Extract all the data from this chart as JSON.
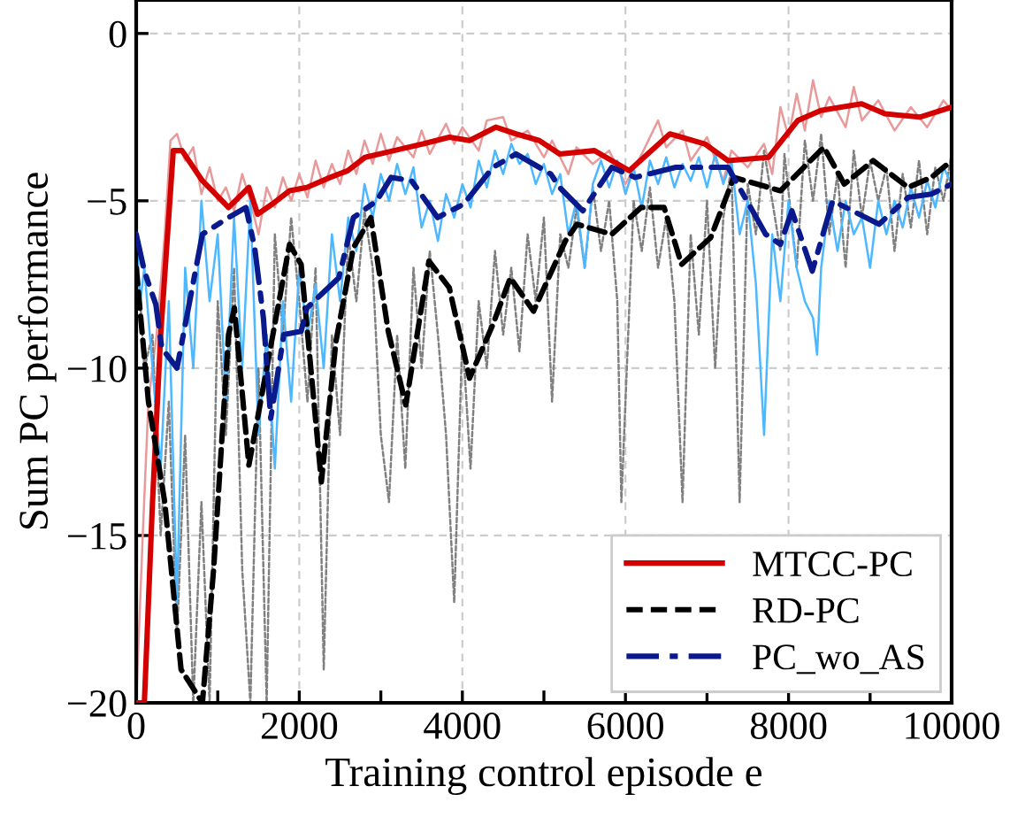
{
  "chart_data": {
    "type": "line",
    "xlabel": "Training control episode e",
    "ylabel": "Sum PC performance",
    "xlim": [
      0,
      10000
    ],
    "ylim": [
      -20,
      1
    ],
    "xticks": [
      0,
      {
        "value": 1000,
        "label": null
      },
      2000,
      {
        "value": 3000,
        "label": null
      },
      4000,
      {
        "value": 5000,
        "label": null
      },
      6000,
      {
        "value": 7000,
        "label": null
      },
      8000,
      {
        "value": 9000,
        "label": null
      },
      10000
    ],
    "yticks": [
      {
        "value": -20,
        "label": "−20"
      },
      {
        "value": -15,
        "label": "−15"
      },
      {
        "value": -10,
        "label": "−10"
      },
      {
        "value": -5,
        "label": "−5"
      },
      0
    ],
    "grid": true,
    "legend": "bottom right",
    "series": [
      {
        "color": "#e89a9a",
        "line_style": "solid",
        "x": [
          0,
          80,
          150,
          250,
          350,
          420,
          500,
          600,
          700,
          800,
          900,
          1000,
          1100,
          1200,
          1300,
          1400,
          1500,
          1600,
          1700,
          1800,
          1900,
          2000,
          2100,
          2200,
          2300,
          2400,
          2500,
          2600,
          2700,
          2800,
          2900,
          3000,
          3100,
          3200,
          3400,
          3500,
          3600,
          3800,
          3900,
          4000,
          4200,
          4300,
          4500,
          4600,
          4800,
          5000,
          5100,
          5300,
          5400,
          5600,
          5800,
          6000,
          6200,
          6400,
          6500,
          6700,
          6800,
          7000,
          7200,
          7300,
          7500,
          7700,
          7800,
          7900,
          8000,
          8100,
          8200,
          8300,
          8400,
          8500,
          8700,
          8800,
          8900,
          9100,
          9300,
          9500,
          9700,
          9900,
          10000
        ],
        "values": [
          -20,
          -15,
          -11,
          -9,
          -6,
          -3.2,
          -3.0,
          -3.8,
          -3.4,
          -4.8,
          -4.0,
          -5.0,
          -4.6,
          -5.3,
          -4.2,
          -5.0,
          -6.0,
          -4.6,
          -5.2,
          -4.3,
          -5.0,
          -4.2,
          -4.9,
          -3.8,
          -4.6,
          -3.9,
          -4.5,
          -3.5,
          -4.2,
          -3.2,
          -3.9,
          -3.0,
          -3.8,
          -3.1,
          -3.7,
          -2.9,
          -3.6,
          -2.7,
          -3.3,
          -2.8,
          -3.5,
          -2.6,
          -2.5,
          -3.2,
          -2.9,
          -3.7,
          -3.2,
          -4.2,
          -3.4,
          -3.9,
          -3.5,
          -4.5,
          -3.6,
          -2.6,
          -3.4,
          -2.9,
          -3.8,
          -3.1,
          -4.4,
          -3.5,
          -4.0,
          -3.3,
          -4.2,
          -2.2,
          -3.1,
          -1.8,
          -2.9,
          -1.4,
          -2.5,
          -1.9,
          -2.8,
          -1.6,
          -2.6,
          -2.0,
          -2.9,
          -2.2,
          -2.8,
          -2.0,
          -2.3
        ]
      },
      {
        "color": "#808080",
        "line_style": "dotted",
        "x": [
          0,
          100,
          200,
          300,
          400,
          500,
          600,
          700,
          800,
          900,
          1000,
          1100,
          1200,
          1300,
          1400,
          1500,
          1600,
          1700,
          1800,
          1900,
          2000,
          2100,
          2200,
          2300,
          2400,
          2500,
          2600,
          2700,
          2800,
          2900,
          3000,
          3100,
          3200,
          3300,
          3400,
          3500,
          3600,
          3700,
          3800,
          3900,
          4000,
          4100,
          4200,
          4300,
          4400,
          4500,
          4600,
          4700,
          4800,
          4900,
          5000,
          5100,
          5200,
          5300,
          5400,
          5500,
          5600,
          5700,
          5800,
          5900,
          5950,
          6100,
          6200,
          6300,
          6400,
          6500,
          6600,
          6700,
          6800,
          6900,
          7000,
          7100,
          7200,
          7300,
          7400,
          7500,
          7600,
          7700,
          7800,
          7900,
          7950,
          8100,
          8200,
          8300,
          8400,
          8500,
          8600,
          8700,
          8800,
          8900,
          9000,
          9100,
          9200,
          9300,
          9400,
          9500,
          9600,
          9700,
          9800,
          9900,
          10000
        ],
        "values": [
          -6,
          -10,
          -9,
          -15,
          -11,
          -18,
          -12,
          -20,
          -14,
          -20,
          -8,
          -12,
          -7,
          -16,
          -20,
          -10,
          -20,
          -6,
          -9,
          -5.5,
          -8,
          -11,
          -7,
          -19,
          -9,
          -12,
          -6,
          -8,
          -5.3,
          -7,
          -12,
          -14,
          -9,
          -13,
          -7,
          -10,
          -6.5,
          -9,
          -12,
          -17,
          -9,
          -13,
          -8,
          -10,
          -6.5,
          -9,
          -7,
          -9.5,
          -6,
          -8,
          -5.5,
          -11,
          -6,
          -7,
          -5.2,
          -7,
          -4.6,
          -6.5,
          -5,
          -8,
          -14,
          -5,
          -6.5,
          -4.6,
          -7,
          -5.5,
          -8,
          -14,
          -6,
          -9,
          -5,
          -10,
          -5.5,
          -4,
          -14,
          -4.5,
          -6,
          -3.5,
          -5,
          -6.5,
          -3.6,
          -7,
          -3.2,
          -5,
          -3,
          -6,
          -4.2,
          -7,
          -3.5,
          -5.5,
          -3.8,
          -5,
          -4,
          -6.5,
          -4.2,
          -5.8,
          -3.8,
          -6,
          -4,
          -5,
          -3.6
        ]
      },
      {
        "color": "#4db8ff",
        "line_style": "solid",
        "x": [
          0,
          50,
          100,
          200,
          300,
          400,
          500,
          600,
          700,
          800,
          900,
          1000,
          1100,
          1200,
          1300,
          1400,
          1500,
          1600,
          1700,
          1800,
          1900,
          2000,
          2100,
          2200,
          2300,
          2400,
          2500,
          2600,
          2700,
          2800,
          2900,
          3000,
          3100,
          3200,
          3300,
          3400,
          3500,
          3600,
          3700,
          3800,
          3900,
          4000,
          4100,
          4200,
          4300,
          4400,
          4500,
          4600,
          4700,
          4800,
          4900,
          5000,
          5100,
          5200,
          5300,
          5400,
          5500,
          5600,
          5700,
          5800,
          5900,
          6000,
          6100,
          6200,
          6300,
          6400,
          6500,
          6600,
          6700,
          6800,
          6900,
          7000,
          7100,
          7200,
          7300,
          7400,
          7500,
          7600,
          7700,
          7800,
          7900,
          8000,
          8100,
          8200,
          8300,
          8350,
          8400,
          8500,
          8600,
          8700,
          8800,
          8900,
          9000,
          9100,
          9200,
          9300,
          9400,
          9500,
          9600,
          9700,
          9800,
          9900,
          10000
        ],
        "values": [
          -6,
          -8,
          -7,
          -10,
          -13,
          -8,
          -17,
          -7,
          -10,
          -5,
          -8,
          -6,
          -11,
          -5.5,
          -10,
          -5,
          -12,
          -9,
          -13,
          -8,
          -11,
          -7,
          -9,
          -7.5,
          -10,
          -6,
          -8,
          -5.5,
          -6.5,
          -4.5,
          -5.5,
          -4.2,
          -5,
          -3.9,
          -4.8,
          -4,
          -5.8,
          -5,
          -6.2,
          -4.8,
          -5.5,
          -4.5,
          -5.2,
          -3.8,
          -4.6,
          -3.5,
          -4.2,
          -3.3,
          -3.9,
          -3.6,
          -4.5,
          -3.9,
          -4.8,
          -4.2,
          -6,
          -5,
          -7,
          -4.5,
          -3.8,
          -4.6,
          -3.8,
          -4.8,
          -4,
          -5.2,
          -3.8,
          -4.5,
          -3.7,
          -4.6,
          -3.9,
          -4.4,
          -3.7,
          -4.6,
          -3.6,
          -4.5,
          -3.8,
          -6,
          -5,
          -7.5,
          -12,
          -6,
          -8,
          -5,
          -7,
          -8,
          -8.5,
          -9.6,
          -7,
          -5,
          -6.5,
          -5,
          -6,
          -5.5,
          -7,
          -5,
          -6,
          -5,
          -5.8,
          -4.6,
          -5.5,
          -4.4,
          -5.2,
          -4,
          -4.5
        ]
      },
      {
        "name": "MTCC-PC",
        "color": "#d40000",
        "line_style": "solid",
        "x": [
          0,
          100,
          200,
          300,
          455,
          562,
          812,
          1132,
          1382,
          1489,
          1667,
          1880,
          2094,
          2379,
          2593,
          2806,
          3162,
          3519,
          3840,
          4088,
          4409,
          4658,
          4943,
          5192,
          5620,
          6047,
          6545,
          6973,
          7258,
          7756,
          8113,
          8397,
          8896,
          9181,
          9609,
          10000
        ],
        "values": [
          -20,
          -20,
          -14,
          -9,
          -3.5,
          -3.5,
          -4.4,
          -5.2,
          -4.6,
          -5.4,
          -5.1,
          -4.7,
          -4.6,
          -4.3,
          -4.1,
          -3.7,
          -3.5,
          -3.3,
          -3.1,
          -3.2,
          -2.8,
          -3.0,
          -3.2,
          -3.6,
          -3.5,
          -4.1,
          -3.0,
          -3.3,
          -3.8,
          -3.7,
          -2.6,
          -2.3,
          -2.1,
          -2.4,
          -2.5,
          -2.2
        ]
      },
      {
        "name": "RD-PC",
        "color": "#000000",
        "line_style": "dashed",
        "x": [
          0,
          150,
          350,
          550,
          812,
          950,
          1132,
          1204,
          1382,
          1880,
          2023,
          2271,
          2450,
          2664,
          2878,
          3091,
          3306,
          3590,
          3840,
          4088,
          4374,
          4588,
          4872,
          5263,
          5406,
          5833,
          6190,
          6474,
          6688,
          7045,
          7329,
          7900,
          8433,
          8683,
          9038,
          9466,
          9751,
          10000
        ],
        "values": [
          -7,
          -11,
          -14,
          -19,
          -20,
          -16,
          -9.0,
          -8.2,
          -12.9,
          -6.3,
          -6.9,
          -13.4,
          -9.2,
          -6.4,
          -5.5,
          -8.9,
          -11.1,
          -6.8,
          -7.6,
          -10.3,
          -8.7,
          -7.3,
          -8.3,
          -6.2,
          -5.7,
          -6.0,
          -5.2,
          -5.2,
          -6.9,
          -6.1,
          -4.3,
          -4.7,
          -3.4,
          -4.5,
          -3.8,
          -4.6,
          -4.3,
          -3.8
        ]
      },
      {
        "name": "PC_wo_AS",
        "color": "#0a1a8c",
        "line_style": "dashdot",
        "x": [
          0,
          100,
          241,
          314,
          500,
          812,
          1132,
          1346,
          1453,
          1560,
          1650,
          1810,
          2023,
          2094,
          2485,
          2664,
          2950,
          3126,
          3376,
          3696,
          4017,
          4374,
          4658,
          5085,
          5192,
          5477,
          5833,
          6118,
          6617,
          7258,
          7720,
          7900,
          8041,
          8291,
          8541,
          9110,
          9466,
          9751,
          10000
        ],
        "values": [
          -6,
          -7.1,
          -8.1,
          -9.4,
          -10,
          -6.0,
          -5.5,
          -5.2,
          -6.4,
          -8.5,
          -11.5,
          -9.0,
          -8.9,
          -8.2,
          -7.3,
          -5.5,
          -5.0,
          -4.3,
          -4.4,
          -5.5,
          -5.1,
          -4.0,
          -3.6,
          -4.2,
          -4.6,
          -5.3,
          -4.0,
          -4.3,
          -4.0,
          -4.0,
          -6.0,
          -6.3,
          -5.3,
          -7.1,
          -5.0,
          -5.7,
          -4.9,
          -4.8,
          -4.5
        ]
      }
    ]
  }
}
